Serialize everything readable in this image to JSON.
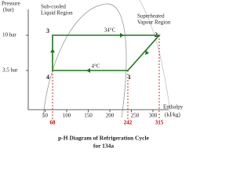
{
  "axes": {
    "y_label": [
      "Pressure",
      "(bar)"
    ],
    "x_label": [
      "Enthalpy",
      "(kJ/kg)"
    ],
    "x_ticks": [
      "50",
      "100",
      "150",
      "200",
      "250",
      "300"
    ],
    "pressure_levels": [
      "10 bar",
      "3.5 bar"
    ]
  },
  "regions": {
    "subcooled": [
      "Sub-cooled",
      "Liquid Region"
    ],
    "superheated": [
      "Superheated",
      "Vapour Region"
    ]
  },
  "points": [
    "1",
    "2",
    "3",
    "4"
  ],
  "temperatures": {
    "condenser": "34°C",
    "evaporator": "4°C"
  },
  "enthalpy_values": [
    "68",
    "242",
    "315"
  ],
  "caption": [
    "p-H Diagram of Refrigeration Cycle",
    "for 134a"
  ]
}
